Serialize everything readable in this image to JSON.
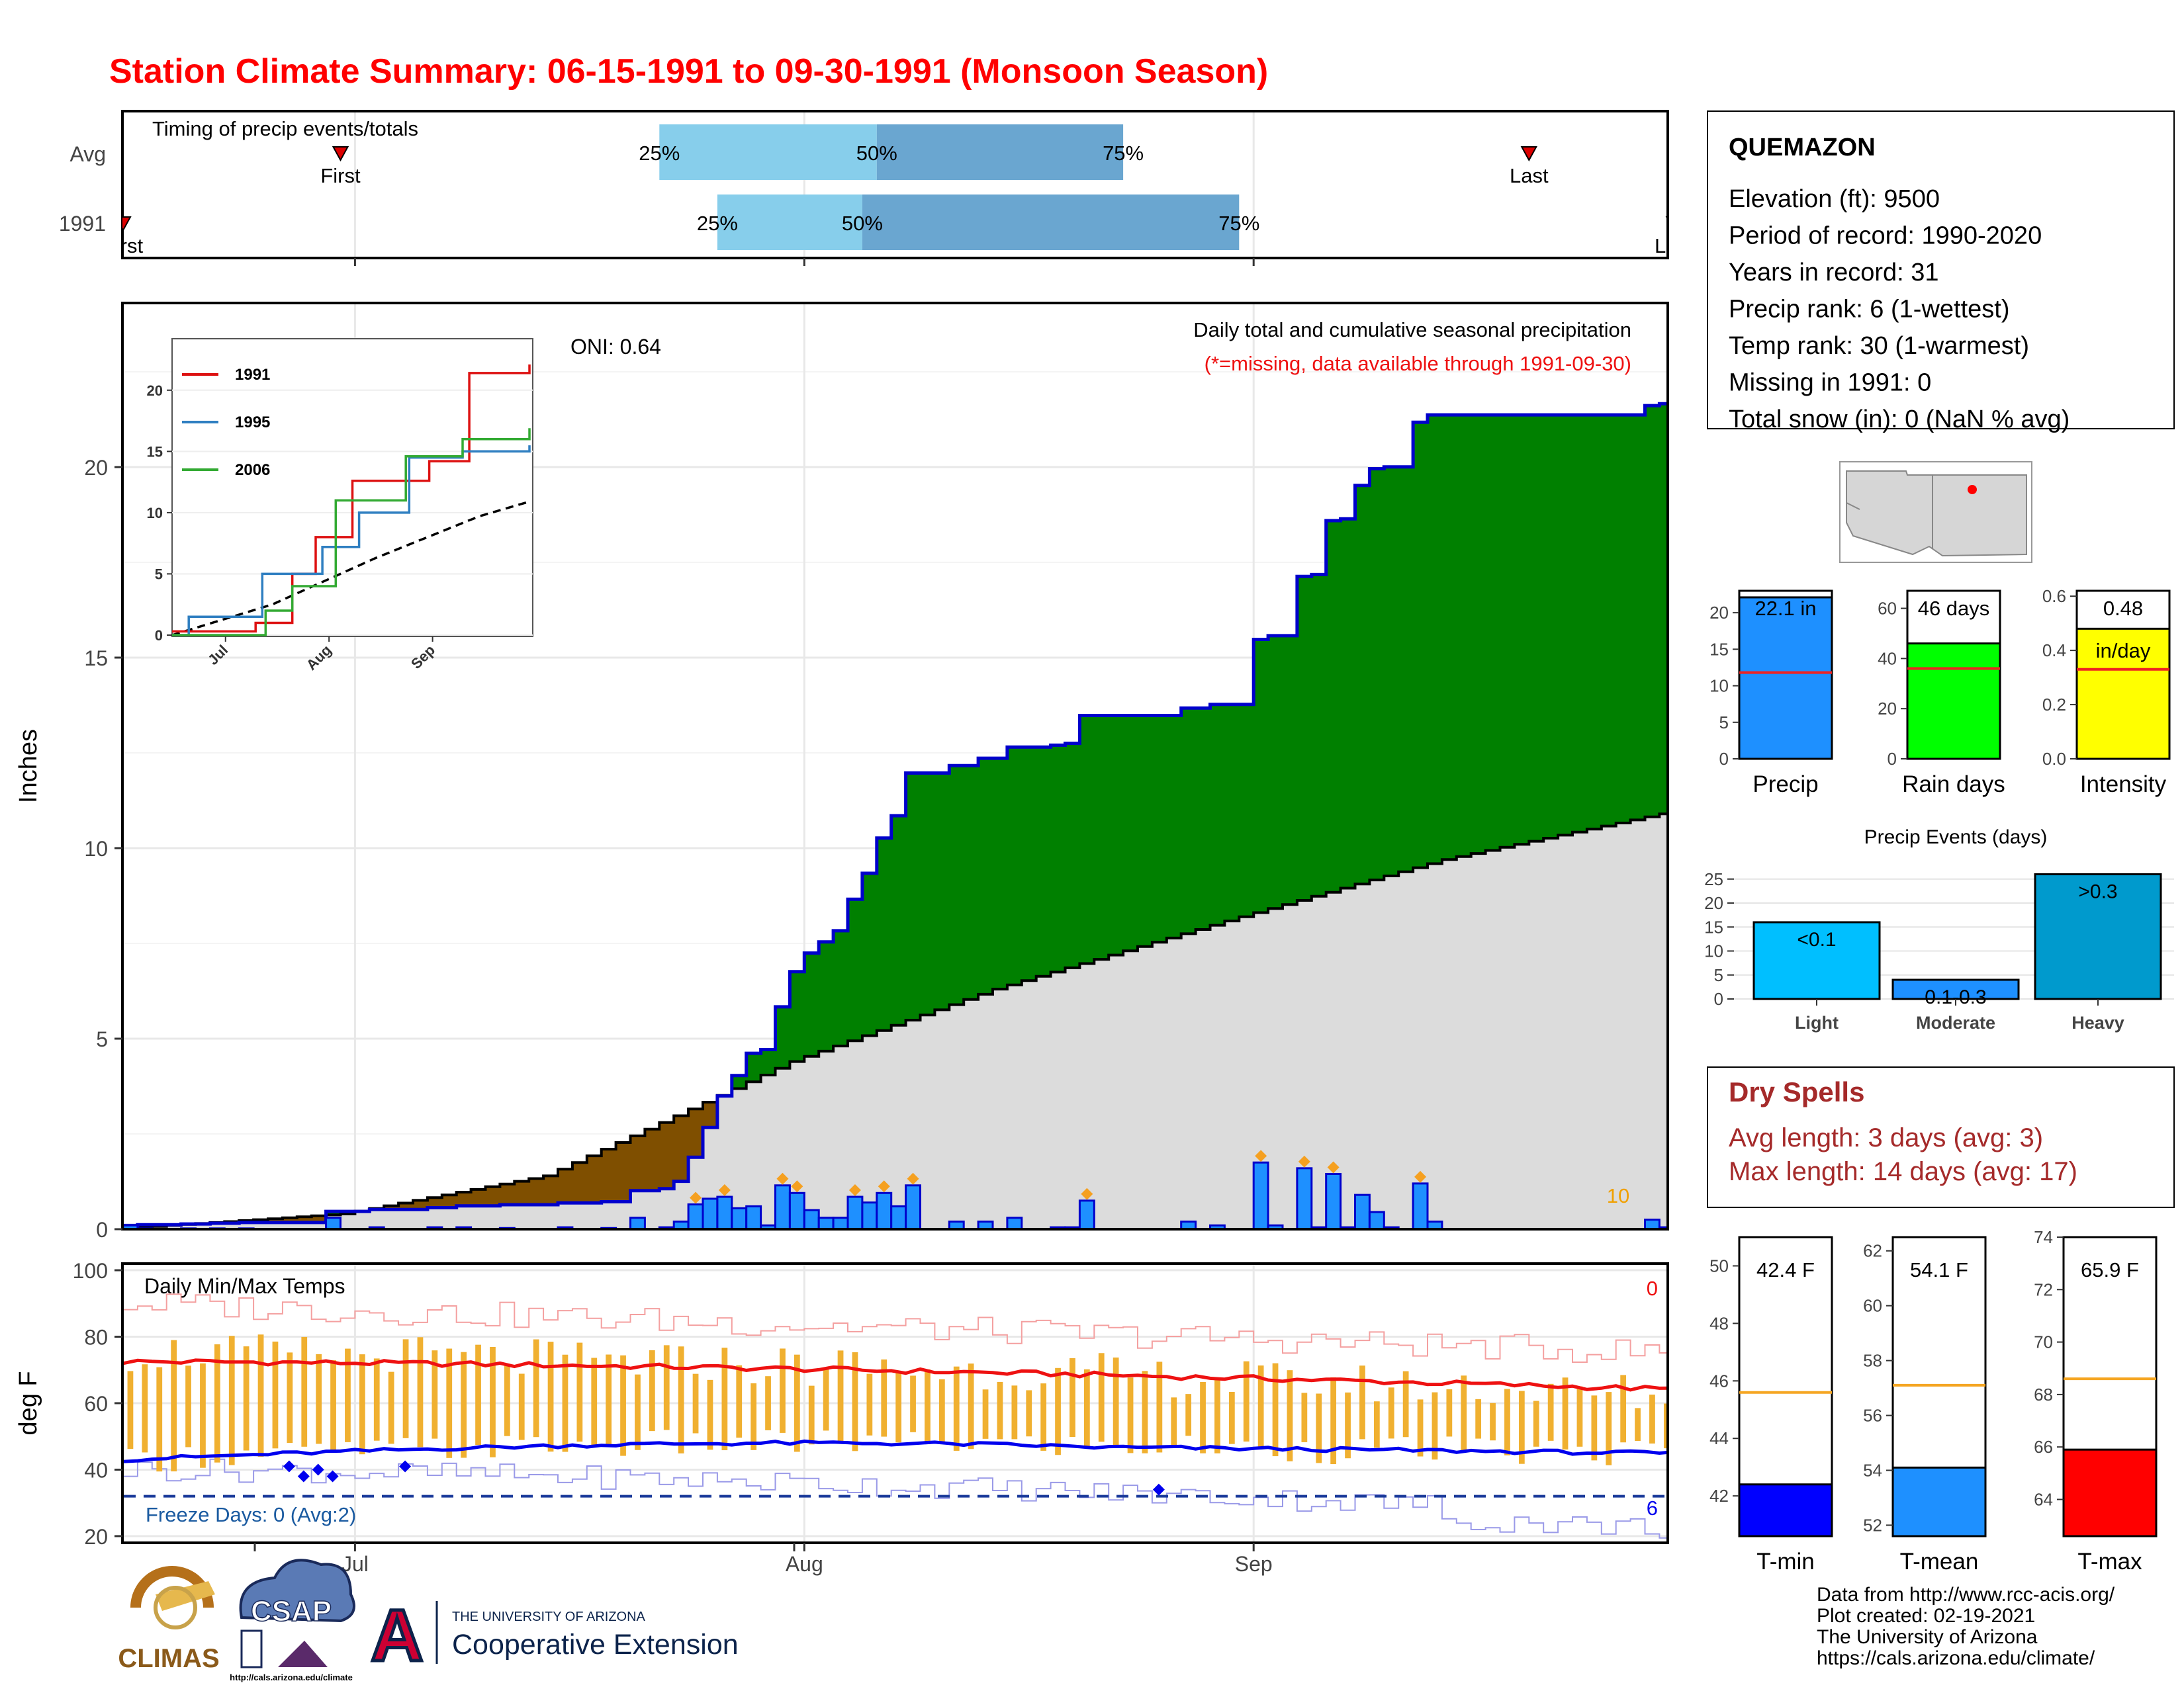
{
  "title": "Station Climate Summary: 06-15-1991 to 09-30-1991 (Monsoon Season)",
  "colors": {
    "title": "#ff0000",
    "cum_green": "#008000",
    "cum_brown": "#7f4f00",
    "avg_gray": "#dcdcdc",
    "bar_blue": "#1e90ff",
    "outline_blue": "#0000cc",
    "tmax_red": "#ee1111",
    "tmin_blue": "#0000ee",
    "range_gold": "#f0b030",
    "timing_light": "#87ceeb",
    "timing_dark": "#6aa6d0",
    "dry_red": "#a52a2a"
  },
  "timing": {
    "title": "Timing of precip events/totals",
    "rows": [
      {
        "label": "Avg",
        "first_label": "First",
        "last_label": "Last",
        "first": "1991-06-30",
        "last": "1991-09-20",
        "q25": "1991-07-22",
        "q50": "1991-08-06",
        "q75": "1991-08-23",
        "q25_label": "25%",
        "q50_label": "50%",
        "q75_label": "75%"
      },
      {
        "label": "1991",
        "first_label": "First",
        "last_label": "Last",
        "first": "1991-06-15",
        "last": "1991-09-30",
        "q25": "1991-07-26",
        "q50": "1991-08-05",
        "q75": "1991-08-31",
        "q25_label": "25%",
        "q50_label": "50%",
        "q75_label": "75%"
      }
    ]
  },
  "x_axis": {
    "start": "1991-06-15",
    "end": "1991-09-30",
    "ticks": [
      {
        "date": "1991-07-01",
        "label": "Jul"
      },
      {
        "date": "1991-08-01",
        "label": "Aug"
      },
      {
        "date": "1991-09-01",
        "label": "Sep"
      }
    ]
  },
  "precip_panel": {
    "ylabel": "Inches",
    "subtitle": "Daily total and cumulative seasonal precipitation",
    "missing_note": "(*=missing, data available through 1991-09-30)",
    "oni_label": "ONI: 0.64",
    "corner_count": "10",
    "yticks": [
      0,
      5,
      10,
      15,
      20
    ],
    "ylim": [
      0,
      24.3
    ]
  },
  "inset": {
    "legend": [
      {
        "name": "1991",
        "color": "#dd1111"
      },
      {
        "name": "1995",
        "color": "#2f7fc1"
      },
      {
        "name": "2006",
        "color": "#33aa33"
      }
    ],
    "yticks": [
      0,
      5,
      10,
      15,
      20
    ],
    "xticks": [
      "Jul",
      "Aug",
      "Sep"
    ]
  },
  "temp_panel": {
    "title": "Daily Min/Max Temps",
    "ylabel": "deg F",
    "freeze_label": "Freeze Days: 0 (Avg:2)",
    "count_high": "0",
    "count_low": "6",
    "yticks": [
      20,
      40,
      60,
      80,
      100
    ],
    "ylim": [
      18,
      102
    ],
    "freeze_line": 32
  },
  "station": {
    "name": "QUEMAZON",
    "lines": [
      "Elevation (ft): 9500",
      "Period of record: 1990-2020",
      "Years in record: 31",
      "Precip rank: 6 (1-wettest)",
      "Temp rank: 30 (1-warmest)",
      "Missing in 1991: 0",
      "Total snow (in): 0 (NaN % avg)"
    ]
  },
  "mini_bars": [
    {
      "label": "Precip",
      "value": 22.1,
      "value_label": "22.1 in",
      "avg": 11.8,
      "ylim": [
        0,
        23
      ],
      "yticks": [
        0,
        5,
        10,
        15,
        20
      ],
      "color": "#1e90ff"
    },
    {
      "label": "Rain days",
      "value": 46,
      "value_label": "46 days",
      "avg": 36,
      "ylim": [
        0,
        67
      ],
      "yticks": [
        0,
        20,
        40,
        60
      ],
      "color": "#00ff00"
    },
    {
      "label": "Intensity",
      "value": 0.48,
      "value_label": "0.48",
      "value_label2": "in/day",
      "avg": 0.33,
      "ylim": [
        0,
        0.62
      ],
      "yticks": [
        "0.0",
        "0.2",
        "0.4",
        "0.6"
      ],
      "color": "#ffff00"
    }
  ],
  "precip_events": {
    "title": "Precip Events (days)",
    "yticks": [
      0,
      5,
      10,
      15,
      20,
      25
    ],
    "categories": [
      "Light",
      "Moderate",
      "Heavy"
    ],
    "labels": [
      "<0.1",
      "0.1-0.3",
      ">0.3"
    ],
    "values": [
      16,
      4,
      26
    ],
    "colors": [
      "#00bfff",
      "#1e90ff",
      "#009acd"
    ]
  },
  "dry_spells": {
    "title": "Dry Spells",
    "avg_line": "Avg length: 3 days (avg: 3)",
    "max_line": "Max length: 14 days (avg: 17)"
  },
  "temp_bars": [
    {
      "label": "T-min",
      "value": 42.4,
      "value_label": "42.4 F",
      "avg": 45.6,
      "ylim": [
        40.6,
        51
      ],
      "yticks": [
        42,
        44,
        46,
        48,
        50
      ],
      "color": "#0000ff"
    },
    {
      "label": "T-mean",
      "value": 54.1,
      "value_label": "54.1 F",
      "avg": 57.1,
      "ylim": [
        51.6,
        62.5
      ],
      "yticks": [
        52,
        54,
        56,
        58,
        60,
        62
      ],
      "color": "#1e90ff"
    },
    {
      "label": "T-max",
      "value": 65.9,
      "value_label": "65.9 F",
      "avg": 68.6,
      "ylim": [
        62.6,
        74
      ],
      "yticks": [
        64,
        66,
        68,
        70,
        72,
        74
      ],
      "color": "#ff0000"
    }
  ],
  "credits": [
    "Data from http://www.rcc-acis.org/",
    "Plot created: 02-19-2021",
    "The University of Arizona",
    "https://cals.arizona.edu/climate/"
  ],
  "logos": {
    "climas": "CLIMAS",
    "csap": "CSAP",
    "csap_url": "http://cals.arizona.edu/climate",
    "ua_small": "THE UNIVERSITY OF ARIZONA",
    "ua_main": "Cooperative Extension",
    "ua_letter": "A"
  },
  "chart_data": {
    "type": "area",
    "title": "Station Climate Summary: 06-15-1991 to 09-30-1991 (Monsoon Season)",
    "xlabel": "",
    "ylabel": "Inches",
    "x_start": "1991-06-15",
    "daily_precip_1991": [
      {
        "date": "1991-06-15",
        "in": 0.1
      },
      {
        "date": "1991-06-16",
        "in": 0.02
      },
      {
        "date": "1991-06-19",
        "in": 0.02
      },
      {
        "date": "1991-06-21",
        "in": 0.02
      },
      {
        "date": "1991-06-23",
        "in": 0.02
      },
      {
        "date": "1991-06-29",
        "in": 0.3
      },
      {
        "date": "1991-07-02",
        "in": 0.05
      },
      {
        "date": "1991-07-06",
        "in": 0.05
      },
      {
        "date": "1991-07-08",
        "in": 0.05
      },
      {
        "date": "1991-07-11",
        "in": 0.03
      },
      {
        "date": "1991-07-15",
        "in": 0.05
      },
      {
        "date": "1991-07-18",
        "in": 0.03
      },
      {
        "date": "1991-07-20",
        "in": 0.3
      },
      {
        "date": "1991-07-22",
        "in": 0.05
      },
      {
        "date": "1991-07-23",
        "in": 0.2
      },
      {
        "date": "1991-07-24",
        "in": 0.65
      },
      {
        "date": "1991-07-25",
        "in": 0.8
      },
      {
        "date": "1991-07-26",
        "in": 0.85
      },
      {
        "date": "1991-07-27",
        "in": 0.55
      },
      {
        "date": "1991-07-28",
        "in": 0.6
      },
      {
        "date": "1991-07-29",
        "in": 0.1
      },
      {
        "date": "1991-07-30",
        "in": 1.15
      },
      {
        "date": "1991-07-31",
        "in": 0.95
      },
      {
        "date": "1991-08-01",
        "in": 0.5
      },
      {
        "date": "1991-08-02",
        "in": 0.3
      },
      {
        "date": "1991-08-03",
        "in": 0.3
      },
      {
        "date": "1991-08-04",
        "in": 0.85
      },
      {
        "date": "1991-08-05",
        "in": 0.7
      },
      {
        "date": "1991-08-06",
        "in": 0.95
      },
      {
        "date": "1991-08-07",
        "in": 0.6
      },
      {
        "date": "1991-08-08",
        "in": 1.15
      },
      {
        "date": "1991-08-11",
        "in": 0.2
      },
      {
        "date": "1991-08-13",
        "in": 0.2
      },
      {
        "date": "1991-08-15",
        "in": 0.3
      },
      {
        "date": "1991-08-18",
        "in": 0.05
      },
      {
        "date": "1991-08-19",
        "in": 0.05
      },
      {
        "date": "1991-08-20",
        "in": 0.75
      },
      {
        "date": "1991-08-27",
        "in": 0.2
      },
      {
        "date": "1991-08-29",
        "in": 0.1
      },
      {
        "date": "1991-09-01",
        "in": 1.75
      },
      {
        "date": "1991-09-02",
        "in": 0.1
      },
      {
        "date": "1991-09-04",
        "in": 1.6
      },
      {
        "date": "1991-09-05",
        "in": 0.05
      },
      {
        "date": "1991-09-06",
        "in": 1.45
      },
      {
        "date": "1991-09-07",
        "in": 0.05
      },
      {
        "date": "1991-09-08",
        "in": 0.9
      },
      {
        "date": "1991-09-09",
        "in": 0.45
      },
      {
        "date": "1991-09-10",
        "in": 0.05
      },
      {
        "date": "1991-09-12",
        "in": 1.2
      },
      {
        "date": "1991-09-13",
        "in": 0.2
      },
      {
        "date": "1991-09-28",
        "in": 0.25
      },
      {
        "date": "1991-09-29",
        "in": 0.05
      },
      {
        "date": "1991-09-30",
        "in": 0.45
      }
    ],
    "cumulative_avg": [
      {
        "date": "1991-06-15",
        "in": 0.0
      },
      {
        "date": "1991-07-01",
        "in": 0.4
      },
      {
        "date": "1991-07-15",
        "in": 1.4
      },
      {
        "date": "1991-07-23",
        "in": 2.8
      },
      {
        "date": "1991-08-01",
        "in": 4.4
      },
      {
        "date": "1991-08-15",
        "in": 6.3
      },
      {
        "date": "1991-09-01",
        "in": 8.2
      },
      {
        "date": "1991-09-15",
        "in": 9.7
      },
      {
        "date": "1991-09-30",
        "in": 10.9
      }
    ],
    "cumulative_1991_total": 22.1,
    "heavy_markers": [
      "1991-07-24",
      "1991-07-26",
      "1991-07-30",
      "1991-07-31",
      "1991-08-04",
      "1991-08-06",
      "1991-08-08",
      "1991-08-20",
      "1991-09-01",
      "1991-09-04",
      "1991-09-06",
      "1991-09-12"
    ],
    "inset_series": [
      {
        "name": "1991",
        "points": [
          {
            "date": "1991-06-15",
            "in": 0.3
          },
          {
            "date": "1991-07-10",
            "in": 1.0
          },
          {
            "date": "1991-07-21",
            "in": 5.0
          },
          {
            "date": "1991-07-28",
            "in": 8.0
          },
          {
            "date": "1991-08-08",
            "in": 12.6
          },
          {
            "date": "1991-08-31",
            "in": 14.2
          },
          {
            "date": "1991-09-12",
            "in": 21.4
          },
          {
            "date": "1991-09-30",
            "in": 22.1
          }
        ]
      },
      {
        "name": "1995",
        "points": [
          {
            "date": "1991-06-15",
            "in": 0.0
          },
          {
            "date": "1991-06-20",
            "in": 1.5
          },
          {
            "date": "1991-07-12",
            "in": 5.0
          },
          {
            "date": "1991-07-30",
            "in": 7.2
          },
          {
            "date": "1991-08-10",
            "in": 10.0
          },
          {
            "date": "1991-08-25",
            "in": 14.5
          },
          {
            "date": "1991-09-10",
            "in": 15.0
          },
          {
            "date": "1991-09-30",
            "in": 15.5
          }
        ]
      },
      {
        "name": "2006",
        "points": [
          {
            "date": "1991-06-15",
            "in": 0.0
          },
          {
            "date": "1991-07-13",
            "in": 2.0
          },
          {
            "date": "1991-07-21",
            "in": 4.0
          },
          {
            "date": "1991-08-03",
            "in": 11.0
          },
          {
            "date": "1991-08-24",
            "in": 14.6
          },
          {
            "date": "1991-09-10",
            "in": 16.0
          },
          {
            "date": "1991-09-30",
            "in": 16.9
          }
        ]
      }
    ],
    "inset_avg": [
      {
        "date": "1991-06-15",
        "in": 0.0
      },
      {
        "date": "1991-07-15",
        "in": 2.5
      },
      {
        "date": "1991-08-15",
        "in": 6.3
      },
      {
        "date": "1991-09-15",
        "in": 9.7
      },
      {
        "date": "1991-09-30",
        "in": 10.9
      }
    ],
    "temps": {
      "tmax_avg_range": [
        63,
        74
      ],
      "tmin_avg_range": [
        40,
        49
      ],
      "daily_max_1991_range": [
        50,
        78
      ],
      "daily_min_1991_range": [
        33,
        48
      ],
      "record_high_range": [
        70,
        92
      ],
      "record_low_range": [
        21,
        45
      ],
      "freeze_threshold": 32
    }
  }
}
